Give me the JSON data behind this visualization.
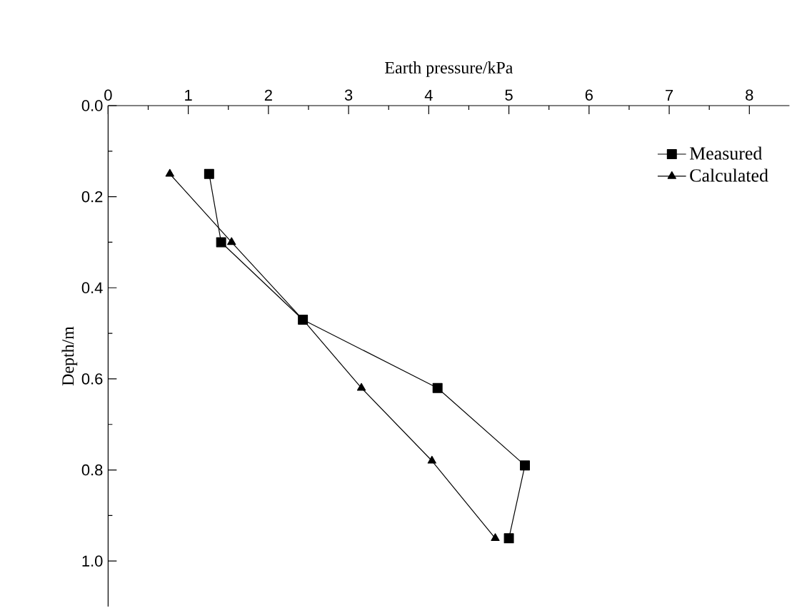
{
  "chart_data": {
    "type": "line",
    "xlabel": "Earth pressure/kPa",
    "ylabel": "Depth/m",
    "xlim": [
      0,
      8.5
    ],
    "xticks": [
      0,
      1,
      2,
      3,
      4,
      5,
      6,
      7,
      8
    ],
    "ylim": [
      1.1,
      0
    ],
    "yticks": [
      {
        "value": 0,
        "label": "0.0"
      },
      {
        "value": 0.2,
        "label": "0.2"
      },
      {
        "value": 0.4,
        "label": "0.4"
      },
      {
        "value": 0.6,
        "label": "0.6"
      },
      {
        "value": 0.8,
        "label": "0.8"
      },
      {
        "value": 1.0,
        "label": "1.0"
      }
    ],
    "legend": "top right",
    "grid": false,
    "line_style": "solid",
    "series": [
      {
        "name": "Measured",
        "color": "#000000",
        "marker": "square",
        "x": [
          1.26,
          1.41,
          2.43,
          4.11,
          5.2,
          5.0
        ],
        "values": [
          0.15,
          0.3,
          0.47,
          0.62,
          0.79,
          0.95
        ]
      },
      {
        "name": "Calculated",
        "color": "#000000",
        "marker": "triangle",
        "x": [
          0.77,
          1.54,
          2.43,
          3.16,
          4.04,
          4.83
        ],
        "values": [
          0.15,
          0.3,
          0.47,
          0.62,
          0.78,
          0.95
        ]
      }
    ]
  }
}
